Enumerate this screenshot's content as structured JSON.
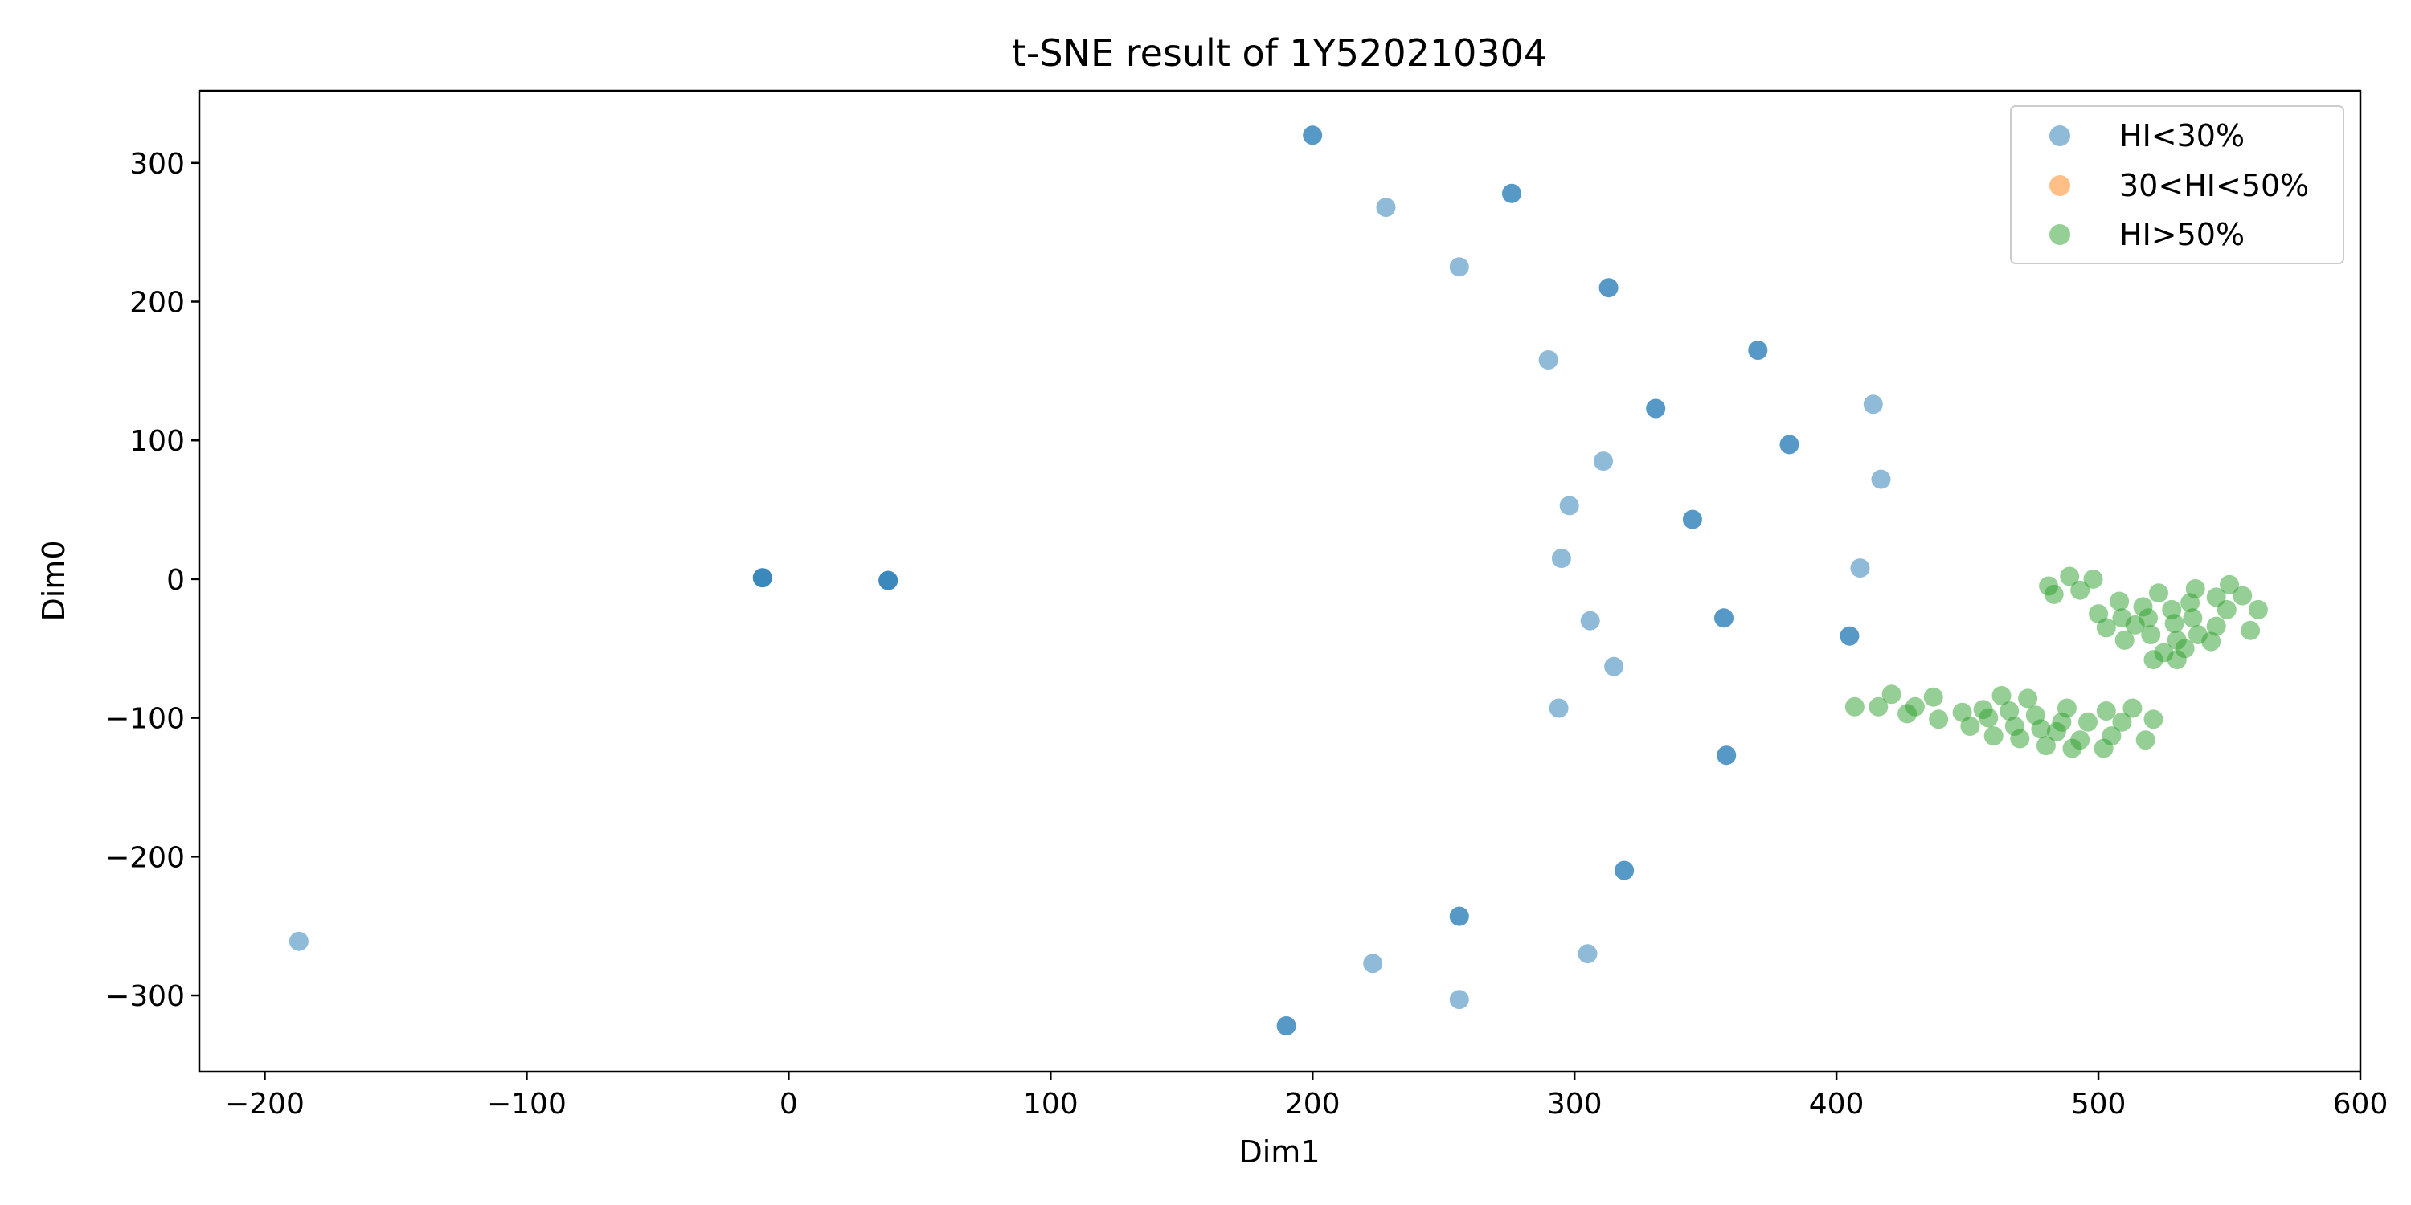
{
  "chart_data": {
    "type": "scatter",
    "title": "t-SNE result of 1Y520210304",
    "xlabel": "Dim1",
    "ylabel": "Dim0",
    "xlim": [
      -225,
      600
    ],
    "ylim": [
      -355,
      352
    ],
    "xticks": [
      -200,
      -100,
      0,
      100,
      200,
      300,
      400,
      500,
      600
    ],
    "xtick_labels": [
      "−200",
      "−100",
      "0",
      "100",
      "200",
      "300",
      "400",
      "500",
      "600"
    ],
    "yticks": [
      -300,
      -200,
      -100,
      0,
      100,
      200,
      300
    ],
    "ytick_labels": [
      "−300",
      "−200",
      "−100",
      "0",
      "100",
      "200",
      "300"
    ],
    "grid": false,
    "legend_position": "top-right",
    "series": [
      {
        "name": "HI<30%",
        "color": "#1f77b4",
        "alpha": 0.5,
        "points": [
          [
            200,
            320
          ],
          [
            200,
            320
          ],
          [
            228,
            268
          ],
          [
            276,
            278
          ],
          [
            276,
            278
          ],
          [
            256,
            225
          ],
          [
            313,
            210
          ],
          [
            313,
            210
          ],
          [
            370,
            165
          ],
          [
            370,
            165
          ],
          [
            290,
            158
          ],
          [
            331,
            123
          ],
          [
            331,
            123
          ],
          [
            414,
            126
          ],
          [
            382,
            97
          ],
          [
            382,
            97
          ],
          [
            311,
            85
          ],
          [
            417,
            72
          ],
          [
            298,
            53
          ],
          [
            345,
            43
          ],
          [
            345,
            43
          ],
          [
            295,
            15
          ],
          [
            409,
            8
          ],
          [
            -10,
            1
          ],
          [
            -10,
            1
          ],
          [
            -10,
            1
          ],
          [
            38,
            -1
          ],
          [
            38,
            -1
          ],
          [
            38,
            -1
          ],
          [
            306,
            -30
          ],
          [
            357,
            -28
          ],
          [
            357,
            -28
          ],
          [
            405,
            -41
          ],
          [
            405,
            -41
          ],
          [
            315,
            -63
          ],
          [
            294,
            -93
          ],
          [
            358,
            -127
          ],
          [
            358,
            -127
          ],
          [
            319,
            -210
          ],
          [
            319,
            -210
          ],
          [
            256,
            -243
          ],
          [
            256,
            -243
          ],
          [
            -187,
            -261
          ],
          [
            223,
            -277
          ],
          [
            305,
            -270
          ],
          [
            256,
            -303
          ],
          [
            190,
            -322
          ],
          [
            190,
            -322
          ]
        ]
      },
      {
        "name": "30<HI<50%",
        "color": "#ff7f0e",
        "alpha": 0.5,
        "points": []
      },
      {
        "name": "HI>50%",
        "color": "#2ca02c",
        "alpha": 0.5,
        "points": [
          [
            481,
            -5
          ],
          [
            489,
            2
          ],
          [
            493,
            -8
          ],
          [
            498,
            0
          ],
          [
            483,
            -11
          ],
          [
            500,
            -25
          ],
          [
            503,
            -35
          ],
          [
            508,
            -16
          ],
          [
            509,
            -28
          ],
          [
            510,
            -44
          ],
          [
            514,
            -33
          ],
          [
            517,
            -20
          ],
          [
            519,
            -28
          ],
          [
            520,
            -40
          ],
          [
            523,
            -10
          ],
          [
            521,
            -58
          ],
          [
            525,
            -53
          ],
          [
            528,
            -22
          ],
          [
            529,
            -32
          ],
          [
            530,
            -44
          ],
          [
            530,
            -58
          ],
          [
            533,
            -50
          ],
          [
            535,
            -17
          ],
          [
            536,
            -28
          ],
          [
            537,
            -7
          ],
          [
            538,
            -40
          ],
          [
            543,
            -45
          ],
          [
            545,
            -13
          ],
          [
            545,
            -34
          ],
          [
            549,
            -22
          ],
          [
            550,
            -4
          ],
          [
            555,
            -12
          ],
          [
            558,
            -37
          ],
          [
            561,
            -22
          ],
          [
            407,
            -92
          ],
          [
            416,
            -92
          ],
          [
            421,
            -83
          ],
          [
            427,
            -97
          ],
          [
            430,
            -92
          ],
          [
            437,
            -85
          ],
          [
            439,
            -101
          ],
          [
            448,
            -96
          ],
          [
            451,
            -106
          ],
          [
            456,
            -94
          ],
          [
            458,
            -100
          ],
          [
            460,
            -113
          ],
          [
            463,
            -84
          ],
          [
            466,
            -95
          ],
          [
            468,
            -106
          ],
          [
            470,
            -115
          ],
          [
            473,
            -86
          ],
          [
            476,
            -98
          ],
          [
            478,
            -108
          ],
          [
            480,
            -120
          ],
          [
            484,
            -110
          ],
          [
            486,
            -103
          ],
          [
            488,
            -93
          ],
          [
            490,
            -122
          ],
          [
            493,
            -116
          ],
          [
            496,
            -103
          ],
          [
            502,
            -122
          ],
          [
            503,
            -95
          ],
          [
            505,
            -113
          ],
          [
            509,
            -103
          ],
          [
            513,
            -93
          ],
          [
            518,
            -116
          ],
          [
            521,
            -101
          ]
        ]
      }
    ]
  }
}
